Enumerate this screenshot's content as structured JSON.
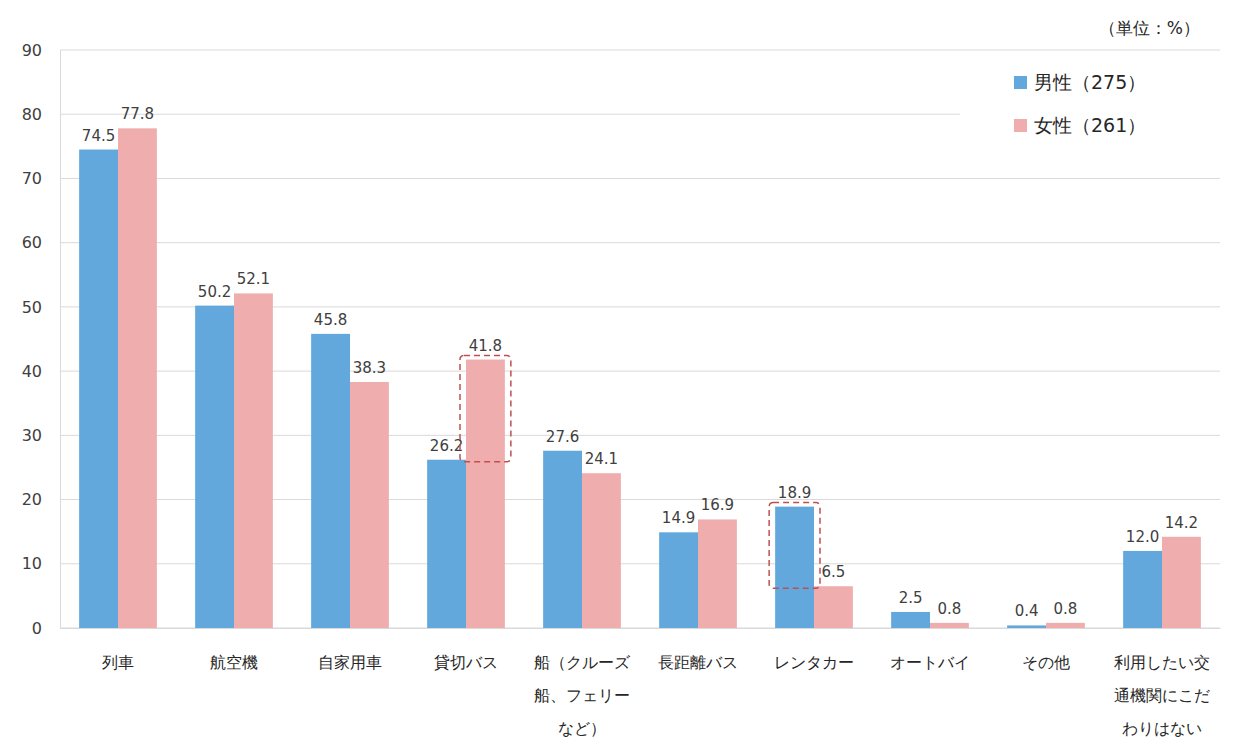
{
  "chart_data": {
    "type": "bar",
    "annotations": [
      "（単位：%）"
    ],
    "categories": [
      "列車",
      "航空機",
      "自家用車",
      "貸切バス",
      "船（クルーズ船、フェリーなど）",
      "長距離バス",
      "レンタカー",
      "オートバイ",
      "その他",
      "利用したい交通機関にこだわりはない"
    ],
    "series": [
      {
        "name": "男性（275）",
        "color": "#62a8dc",
        "values": [
          74.5,
          50.2,
          45.8,
          26.2,
          27.6,
          14.9,
          18.9,
          2.5,
          0.4,
          12.0
        ],
        "value_labels": [
          "74.5",
          "50.2",
          "45.8",
          "26.2",
          "27.6",
          "14.9",
          "18.9",
          "2.5",
          "0.4",
          "12.0"
        ]
      },
      {
        "name": "女性（261）",
        "color": "#efadad",
        "values": [
          77.8,
          52.1,
          38.3,
          41.8,
          24.1,
          16.9,
          6.5,
          0.8,
          0.8,
          14.2
        ],
        "value_labels": [
          "77.8",
          "52.1",
          "38.3",
          "41.8",
          "24.1",
          "16.9",
          "6.5",
          "0.8",
          "0.8",
          "14.2"
        ]
      }
    ],
    "ylim": [
      0,
      90
    ],
    "yticks": [
      0,
      10,
      20,
      30,
      40,
      50,
      60,
      70,
      80,
      90
    ],
    "grid": true,
    "legend": "top-right",
    "data_labels": true
  }
}
